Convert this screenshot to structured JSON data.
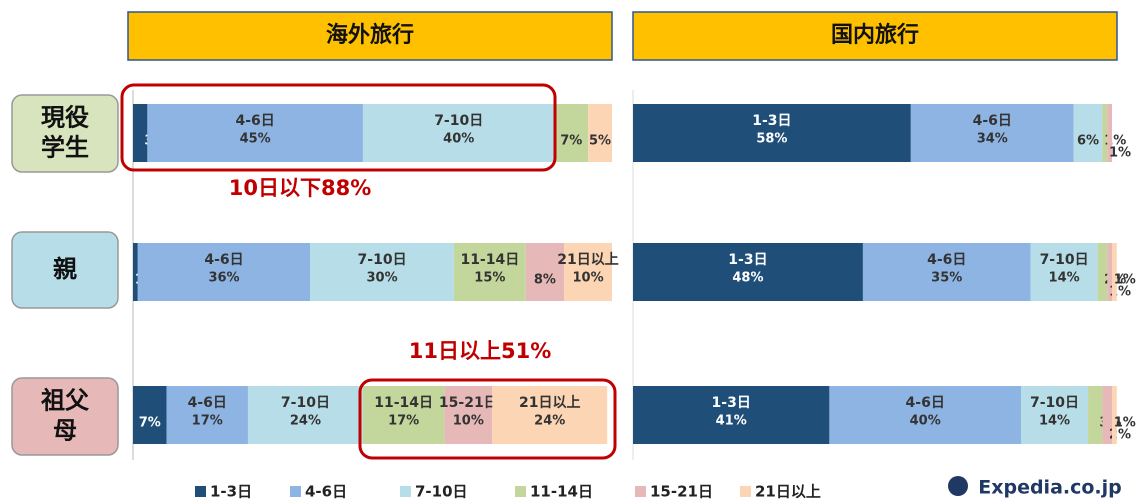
{
  "chart_data": [
    {
      "type": "stacked_bar",
      "title": "海外旅行",
      "categories": [
        "現役学生",
        "親",
        "祖父母"
      ],
      "xlim": [
        0,
        100
      ],
      "series": [
        {
          "name": "1-3日",
          "color": "#1f4e79",
          "values": [
            3,
            1,
            7
          ],
          "value_labels": [
            "3%",
            "1%",
            "7%"
          ]
        },
        {
          "name": "4-6日",
          "color": "#8eb4e3",
          "values": [
            45,
            36,
            17
          ],
          "value_labels": [
            "45%",
            "36%",
            "17%"
          ]
        },
        {
          "name": "7-10日",
          "color": "#b7dee8",
          "values": [
            40,
            30,
            24
          ],
          "value_labels": [
            "40%",
            "30%",
            "24%"
          ]
        },
        {
          "name": "11-14日",
          "color": "#c3d69b",
          "values": [
            7,
            15,
            17
          ],
          "value_labels": [
            "7%",
            "15%",
            "17%"
          ]
        },
        {
          "name": "15-21日",
          "color": "#e6b9b8",
          "values": [
            0,
            8,
            10
          ],
          "value_labels": [
            null,
            "8%",
            "10%"
          ]
        },
        {
          "name": "21日以上",
          "color": "#fcd5b5",
          "values": [
            5,
            10,
            24
          ],
          "value_labels": [
            "5%",
            "10%",
            "24%"
          ]
        }
      ]
    },
    {
      "type": "stacked_bar",
      "title": "国内旅行",
      "categories": [
        "現役学生",
        "親",
        "祖父母"
      ],
      "xlim": [
        0,
        100
      ],
      "series": [
        {
          "name": "1-3日",
          "color": "#1f4e79",
          "values": [
            58,
            48,
            41
          ],
          "value_labels": [
            "58%",
            "48%",
            "41%"
          ]
        },
        {
          "name": "4-6日",
          "color": "#8eb4e3",
          "values": [
            34,
            35,
            40
          ],
          "value_labels": [
            "34%",
            "35%",
            "40%"
          ]
        },
        {
          "name": "7-10日",
          "color": "#b7dee8",
          "values": [
            6,
            14,
            14
          ],
          "value_labels": [
            "6%",
            "14%",
            "14%"
          ]
        },
        {
          "name": "11-14日",
          "color": "#c3d69b",
          "values": [
            1,
            2,
            3
          ],
          "value_labels": [
            "1%",
            "2%",
            "3%"
          ]
        },
        {
          "name": "15-21日",
          "color": "#e6b9b8",
          "values": [
            1,
            1,
            2
          ],
          "value_labels": [
            "1%",
            "1%",
            "2%"
          ]
        },
        {
          "name": "21日以上",
          "color": "#fcd5b5",
          "values": [
            0,
            1,
            1
          ],
          "value_labels": [
            null,
            "1%",
            "1%"
          ]
        }
      ]
    }
  ],
  "row_labels": [
    "現役\n学生",
    "親",
    "祖父\n母"
  ],
  "annotations": [
    "10日以下88%",
    "11日以上51%"
  ],
  "logo": "Expedia.co.jp"
}
